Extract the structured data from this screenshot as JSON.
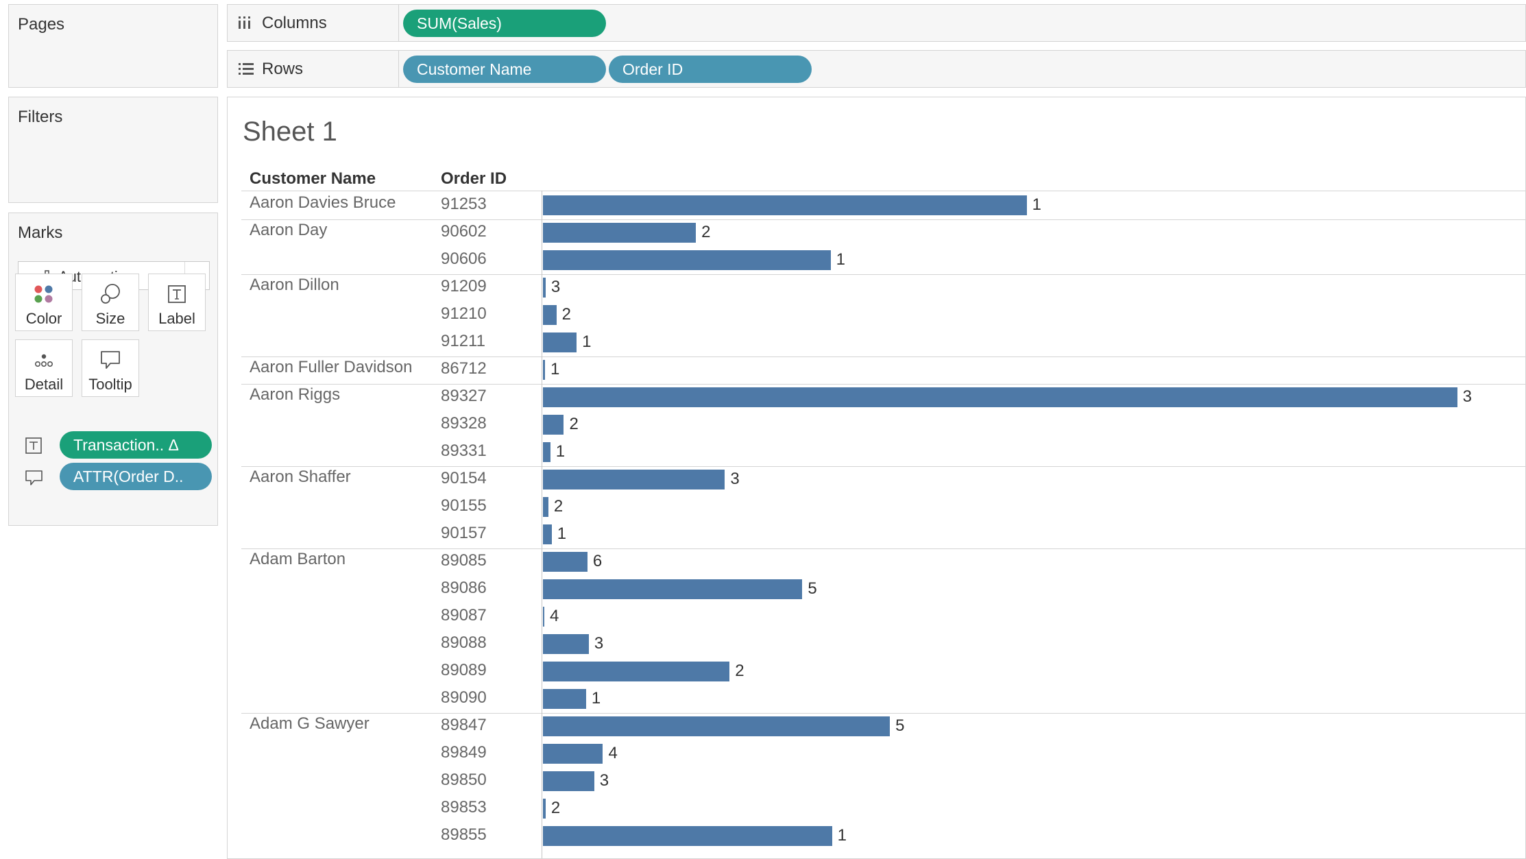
{
  "panels": {
    "pages": "Pages",
    "filters": "Filters",
    "marks": "Marks"
  },
  "marks": {
    "type": "Automatic",
    "cards": [
      {
        "label": "Color",
        "icon": "color-icon"
      },
      {
        "label": "Size",
        "icon": "size-icon"
      },
      {
        "label": "Label",
        "icon": "label-icon"
      },
      {
        "label": "Detail",
        "icon": "detail-icon"
      },
      {
        "label": "Tooltip",
        "icon": "tooltip-icon"
      }
    ],
    "fields": [
      {
        "icon": "label-icon",
        "pill": "Transaction.. Δ",
        "color": "#1aa079"
      },
      {
        "icon": "tooltip-icon",
        "pill": "ATTR(Order D..",
        "color": "#4996b2"
      }
    ]
  },
  "shelves": {
    "columns": {
      "label": "Columns",
      "pills": [
        "SUM(Sales)"
      ]
    },
    "rows": {
      "label": "Rows",
      "pills": [
        "Customer Name",
        "Order ID"
      ]
    }
  },
  "colors": {
    "measure_pill": "#1aa079",
    "dimension_pill": "#4996b2",
    "bar": "#4e79a7"
  },
  "sheet": {
    "title": "Sheet 1",
    "headers": {
      "customer": "Customer Name",
      "order": "Order ID"
    }
  },
  "chart_data": {
    "type": "bar",
    "orientation": "horizontal",
    "measure": "SUM(Sales)",
    "rows": [
      {
        "customer": "Aaron Davies Bruce",
        "order": "91253",
        "sales": 718,
        "label": "1"
      },
      {
        "customer": "Aaron Day",
        "order": "90602",
        "sales": 227,
        "label": "2"
      },
      {
        "customer": "",
        "order": "90606",
        "sales": 427,
        "label": "1"
      },
      {
        "customer": "Aaron Dillon",
        "order": "91209",
        "sales": 4,
        "label": "3"
      },
      {
        "customer": "",
        "order": "91210",
        "sales": 20,
        "label": "2"
      },
      {
        "customer": "",
        "order": "91211",
        "sales": 50,
        "label": "1"
      },
      {
        "customer": "Aaron Fuller Davidson",
        "order": "86712",
        "sales": 3,
        "label": "1"
      },
      {
        "customer": "Aaron Riggs",
        "order": "89327",
        "sales": 1357,
        "label": "3"
      },
      {
        "customer": "",
        "order": "89328",
        "sales": 31,
        "label": "2"
      },
      {
        "customer": "",
        "order": "89331",
        "sales": 11,
        "label": "1"
      },
      {
        "customer": "Aaron Shaffer",
        "order": "90154",
        "sales": 270,
        "label": "3"
      },
      {
        "customer": "",
        "order": "90155",
        "sales": 8,
        "label": "2"
      },
      {
        "customer": "",
        "order": "90157",
        "sales": 13,
        "label": "1"
      },
      {
        "customer": "Adam Barton",
        "order": "89085",
        "sales": 66,
        "label": "6"
      },
      {
        "customer": "",
        "order": "89086",
        "sales": 385,
        "label": "5"
      },
      {
        "customer": "",
        "order": "89087",
        "sales": 2,
        "label": "4"
      },
      {
        "customer": "",
        "order": "89088",
        "sales": 68,
        "label": "3"
      },
      {
        "customer": "",
        "order": "89089",
        "sales": 277,
        "label": "2"
      },
      {
        "customer": "",
        "order": "89090",
        "sales": 64,
        "label": "1"
      },
      {
        "customer": "Adam G Sawyer",
        "order": "89847",
        "sales": 515,
        "label": "5"
      },
      {
        "customer": "",
        "order": "89849",
        "sales": 89,
        "label": "4"
      },
      {
        "customer": "",
        "order": "89850",
        "sales": 76,
        "label": "3"
      },
      {
        "customer": "",
        "order": "89853",
        "sales": 4,
        "label": "2"
      },
      {
        "customer": "",
        "order": "89855",
        "sales": 429,
        "label": "1"
      }
    ],
    "xlim": [
      0,
      1450
    ],
    "axis_shown": false
  }
}
